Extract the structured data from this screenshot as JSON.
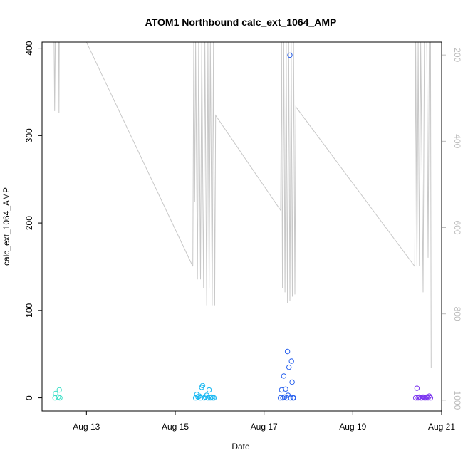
{
  "chart_data": {
    "type": "scatter",
    "title": "ATOM1 Northbound calc_ext_1064_AMP",
    "xlabel": "Date",
    "ylabel": "calc_ext_1064_AMP",
    "x_ticks": [
      "Aug 13",
      "Aug 15",
      "Aug 17",
      "Aug 19",
      "Aug 21"
    ],
    "y_ticks": [
      0,
      100,
      200,
      300,
      400
    ],
    "y2_ticks": [
      200,
      400,
      600,
      800,
      1000
    ],
    "y2_reversed": true,
    "xlim": [
      "2021-08-12T00:00",
      "2021-08-21T00:00"
    ],
    "ylim": [
      -15,
      407
    ],
    "y2lim": [
      1025,
      170
    ],
    "grid": false,
    "series": [
      {
        "color": "#40e0c8",
        "points": [
          [
            "2021-08-12T07:00",
            0
          ],
          [
            "2021-08-12T07:20",
            5
          ],
          [
            "2021-08-12T08:50",
            1
          ],
          [
            "2021-08-12T09:20",
            9
          ],
          [
            "2021-08-12T09:40",
            0
          ]
        ]
      },
      {
        "color": "#19b8f2",
        "points": [
          [
            "2021-08-15T11:00",
            0
          ],
          [
            "2021-08-15T11:40",
            4
          ],
          [
            "2021-08-15T12:20",
            1
          ],
          [
            "2021-08-15T13:00",
            2
          ],
          [
            "2021-08-15T13:40",
            0
          ],
          [
            "2021-08-15T14:20",
            12
          ],
          [
            "2021-08-15T14:50",
            14
          ],
          [
            "2021-08-15T15:40",
            0
          ],
          [
            "2021-08-15T16:20",
            1
          ],
          [
            "2021-08-15T17:00",
            3
          ],
          [
            "2021-08-15T17:40",
            0
          ],
          [
            "2021-08-15T18:20",
            9
          ],
          [
            "2021-08-15T19:00",
            0
          ],
          [
            "2021-08-15T19:40",
            1
          ],
          [
            "2021-08-15T20:20",
            0
          ],
          [
            "2021-08-15T21:00",
            0
          ]
        ]
      },
      {
        "color": "#2a62ee",
        "points": [
          [
            "2021-08-17T08:50",
            0
          ],
          [
            "2021-08-17T09:30",
            9
          ],
          [
            "2021-08-17T10:10",
            0
          ],
          [
            "2021-08-17T10:40",
            25
          ],
          [
            "2021-08-17T11:10",
            1
          ],
          [
            "2021-08-17T11:40",
            10
          ],
          [
            "2021-08-17T12:10",
            0
          ],
          [
            "2021-08-17T12:40",
            53
          ],
          [
            "2021-08-17T13:00",
            3
          ],
          [
            "2021-08-17T13:30",
            35
          ],
          [
            "2021-08-17T14:00",
            392
          ],
          [
            "2021-08-17T14:20",
            0
          ],
          [
            "2021-08-17T14:50",
            42
          ],
          [
            "2021-08-17T15:10",
            18
          ],
          [
            "2021-08-17T15:40",
            0
          ],
          [
            "2021-08-17T16:00",
            0
          ]
        ]
      },
      {
        "color": "#7b35ef",
        "points": [
          [
            "2021-08-20T10:00",
            0
          ],
          [
            "2021-08-20T10:40",
            11
          ],
          [
            "2021-08-20T11:20",
            0
          ],
          [
            "2021-08-20T12:00",
            1
          ],
          [
            "2021-08-20T12:40",
            0
          ],
          [
            "2021-08-20T13:20",
            0
          ],
          [
            "2021-08-20T14:00",
            1
          ],
          [
            "2021-08-20T14:40",
            0
          ],
          [
            "2021-08-20T15:20",
            0
          ],
          [
            "2021-08-20T16:00",
            1
          ],
          [
            "2021-08-20T16:40",
            0
          ],
          [
            "2021-08-20T17:20",
            2
          ],
          [
            "2021-08-20T18:00",
            0
          ]
        ]
      }
    ],
    "secondary_line": {
      "color": "#c8c8c8",
      "points": [
        [
          "2021-08-12T06:30",
          170
        ],
        [
          "2021-08-12T06:50",
          330
        ],
        [
          "2021-08-12T07:10",
          170
        ],
        [
          "2021-08-12T09:00",
          170
        ],
        [
          "2021-08-12T09:10",
          335
        ],
        [
          "2021-08-12T09:20",
          170
        ],
        [
          "2021-08-13T00:00",
          170
        ],
        [
          "2021-08-15T09:30",
          690
        ],
        [
          "2021-08-15T10:00",
          170
        ],
        [
          "2021-08-15T10:30",
          540
        ],
        [
          "2021-08-15T11:00",
          170
        ],
        [
          "2021-08-15T12:00",
          720
        ],
        [
          "2021-08-15T12:40",
          170
        ],
        [
          "2021-08-15T13:40",
          720
        ],
        [
          "2021-08-15T14:20",
          170
        ],
        [
          "2021-08-15T15:20",
          740
        ],
        [
          "2021-08-15T16:00",
          170
        ],
        [
          "2021-08-15T17:00",
          780
        ],
        [
          "2021-08-15T17:40",
          170
        ],
        [
          "2021-08-15T18:20",
          740
        ],
        [
          "2021-08-15T19:00",
          170
        ],
        [
          "2021-08-15T20:00",
          780
        ],
        [
          "2021-08-15T20:40",
          170
        ],
        [
          "2021-08-15T21:20",
          780
        ],
        [
          "2021-08-15T21:50",
          340
        ],
        [
          "2021-08-17T09:00",
          560
        ],
        [
          "2021-08-17T09:30",
          170
        ],
        [
          "2021-08-17T10:00",
          740
        ],
        [
          "2021-08-17T10:40",
          170
        ],
        [
          "2021-08-17T11:20",
          750
        ],
        [
          "2021-08-17T12:00",
          170
        ],
        [
          "2021-08-17T12:40",
          775
        ],
        [
          "2021-08-17T13:20",
          170
        ],
        [
          "2021-08-17T14:00",
          770
        ],
        [
          "2021-08-17T14:40",
          170
        ],
        [
          "2021-08-17T15:20",
          760
        ],
        [
          "2021-08-17T16:00",
          170
        ],
        [
          "2021-08-17T16:40",
          755
        ],
        [
          "2021-08-17T17:10",
          320
        ],
        [
          "2021-08-20T09:30",
          690
        ],
        [
          "2021-08-20T10:00",
          170
        ],
        [
          "2021-08-20T10:40",
          690
        ],
        [
          "2021-08-20T11:20",
          170
        ],
        [
          "2021-08-20T12:00",
          690
        ],
        [
          "2021-08-20T12:40",
          170
        ],
        [
          "2021-08-20T13:20",
          445
        ],
        [
          "2021-08-20T14:00",
          750
        ],
        [
          "2021-08-20T14:40",
          170
        ],
        [
          "2021-08-20T16:00",
          170
        ],
        [
          "2021-08-20T16:40",
          670
        ],
        [
          "2021-08-20T17:20",
          170
        ],
        [
          "2021-08-20T18:00",
          170
        ],
        [
          "2021-08-20T18:20",
          925
        ]
      ]
    }
  }
}
